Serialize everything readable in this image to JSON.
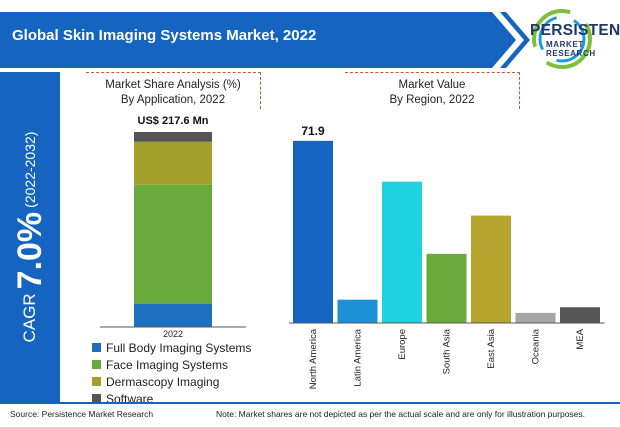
{
  "header": {
    "title": "Global Skin Imaging Systems Market, 2022",
    "logo_main": "PERSISTENCE",
    "logo_sub": "MARKET RESEARCH"
  },
  "cagr": {
    "label": "CAGR",
    "value": "7.0%",
    "period": "(2022-2032)"
  },
  "colors": {
    "brand_blue": "#1565c0",
    "header_blue": "#1565c0",
    "dashed_accent": "#b85c3a"
  },
  "chart_data": [
    {
      "type": "bar",
      "stacked": true,
      "title_line1": "Market Share Analysis (%)",
      "title_line2": "By Application, 2022",
      "total_label": "US$ 217.6 Mn",
      "categories": [
        "2022"
      ],
      "ylim": [
        0,
        100
      ],
      "series": [
        {
          "name": "Full Body Imaging Systems",
          "values": [
            12
          ],
          "color": "#1f6fc1"
        },
        {
          "name": "Face Imaging Systems",
          "values": [
            61
          ],
          "color": "#6aaa3c"
        },
        {
          "name": "Dermascopy Imaging",
          "values": [
            22
          ],
          "color": "#a5a02c"
        },
        {
          "name": "Software",
          "values": [
            5
          ],
          "color": "#555555"
        }
      ],
      "legend_position": "bottom"
    },
    {
      "type": "bar",
      "title_line1": "Market Value",
      "title_line2": "By Region, 2022",
      "categories": [
        "North America",
        "Latin America",
        "Europe",
        "South Asia",
        "East Asia",
        "Oceania",
        "MEA"
      ],
      "values": [
        71.9,
        9.2,
        55.8,
        27.3,
        42.4,
        4.0,
        6.2
      ],
      "colors": [
        "#1565c0",
        "#1e90d8",
        "#1ed2df",
        "#6aaa3c",
        "#b5a52e",
        "#a6a6a6",
        "#555555"
      ],
      "data_labels": {
        "North America": "71.9"
      },
      "ylim": [
        0,
        75
      ],
      "grid": false
    }
  ],
  "footer": {
    "source": "Source: Persistence Market Research",
    "note": "Note: Market shares are not depicted as per the actual scale and are only for illustration purposes."
  }
}
